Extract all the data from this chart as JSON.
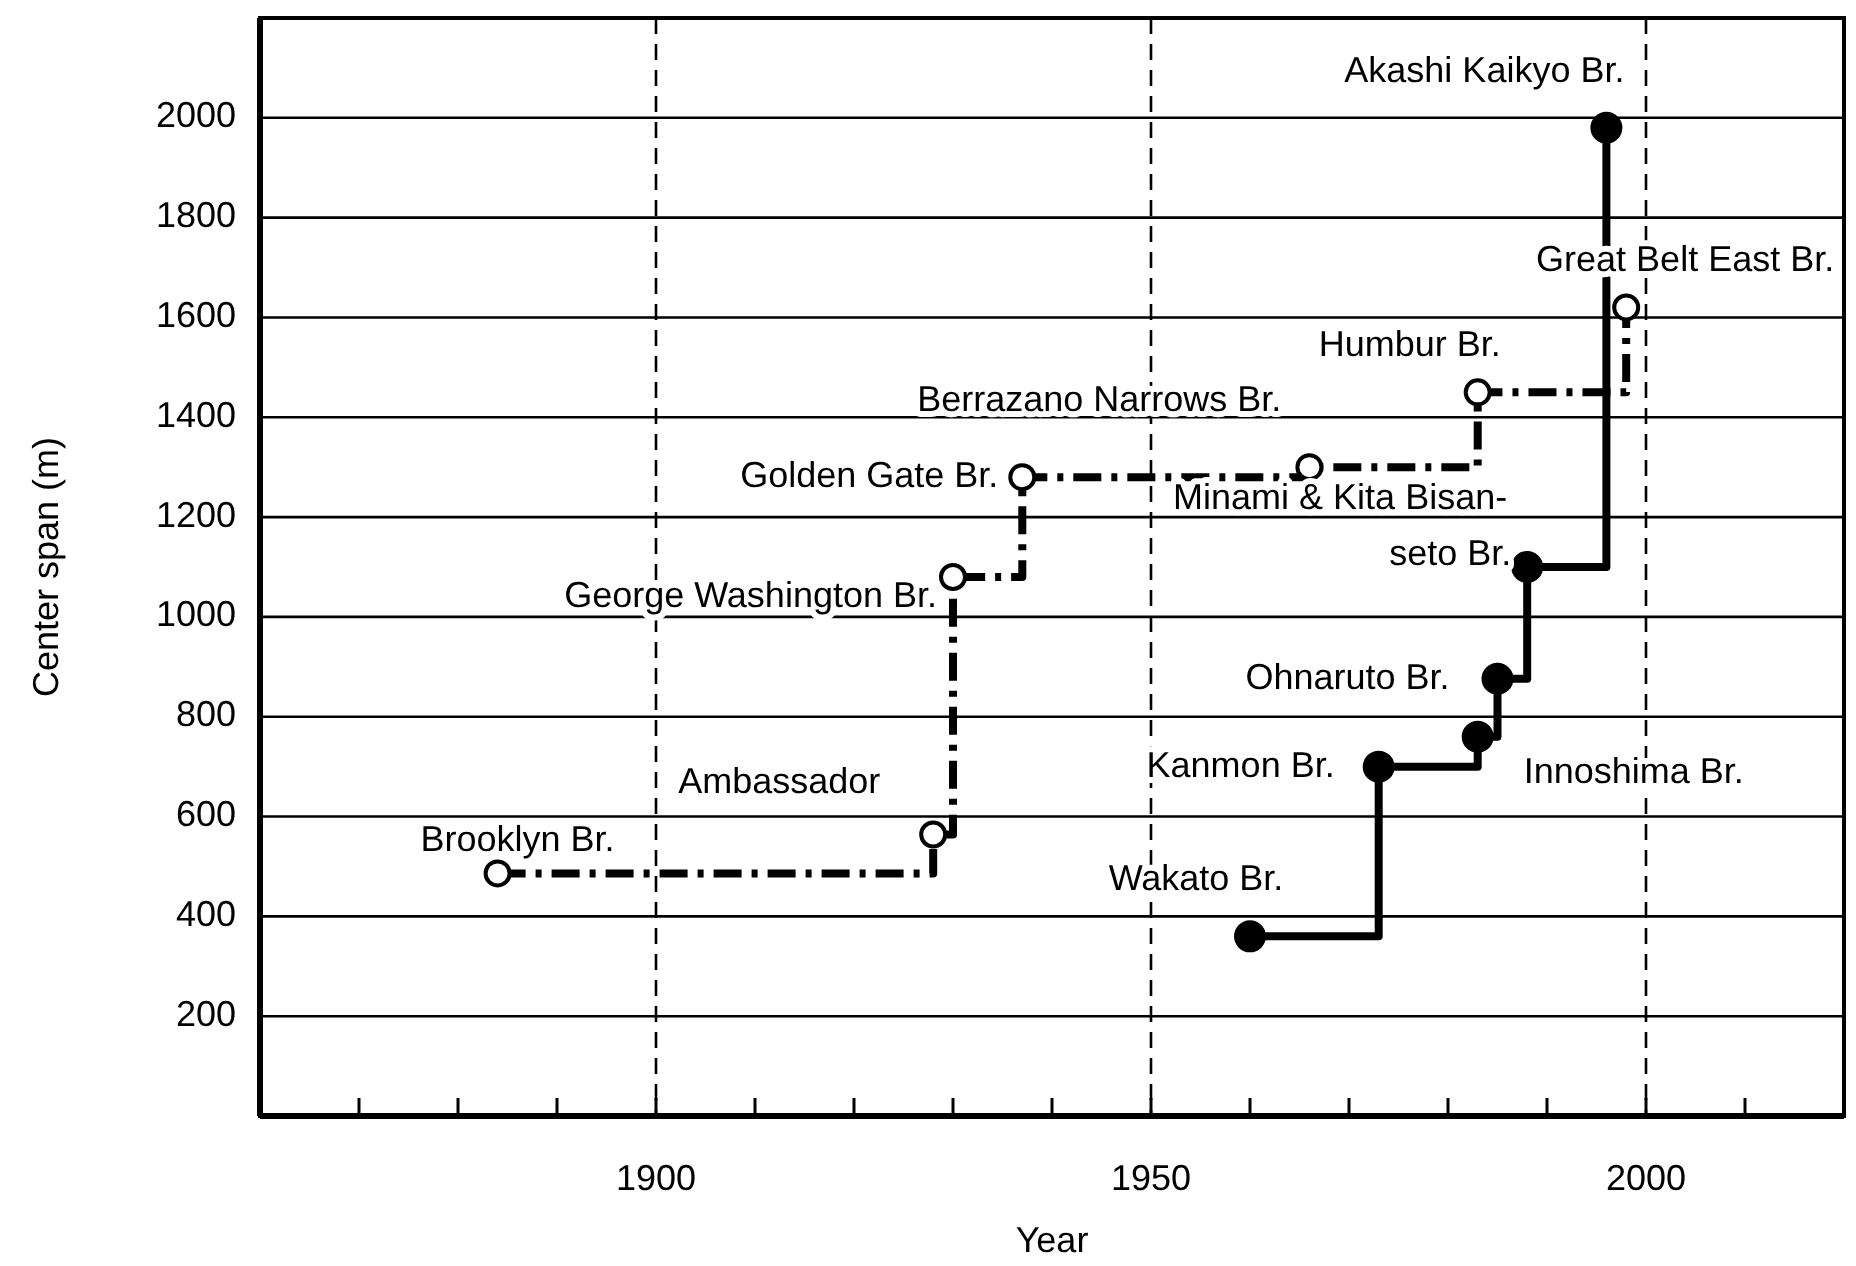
{
  "chart_data": {
    "type": "step",
    "xlabel": "Year",
    "ylabel": "Center span (m)",
    "xlim": [
      1860,
      2020
    ],
    "ylim": [
      0,
      2200
    ],
    "xticks": [
      {
        "value": 1870,
        "label": null
      },
      {
        "value": 1880,
        "label": null
      },
      {
        "value": 1890,
        "label": null
      },
      1900,
      {
        "value": 1910,
        "label": null
      },
      {
        "value": 1920,
        "label": null
      },
      {
        "value": 1930,
        "label": null
      },
      {
        "value": 1940,
        "label": null
      },
      1950,
      {
        "value": 1960,
        "label": null
      },
      {
        "value": 1970,
        "label": null
      },
      {
        "value": 1980,
        "label": null
      },
      {
        "value": 1990,
        "label": null
      },
      2000,
      {
        "value": 2010,
        "label": null
      }
    ],
    "yticks": [
      200,
      400,
      600,
      800,
      1000,
      1200,
      1400,
      1600,
      1800,
      2000
    ],
    "grid": true,
    "marker": "circle",
    "series": [
      {
        "color": "#000000",
        "line_style": "dashed",
        "x": [
          1884,
          1928,
          1930,
          1937,
          1966,
          1983,
          1998
        ],
        "values": [
          486,
          564,
          1080,
          1280,
          1300,
          1450,
          1620
        ]
      },
      {
        "color": "#000000",
        "line_style": "solid",
        "x": [
          1960,
          1973,
          1983,
          1985,
          1988,
          1996
        ],
        "values": [
          360,
          700,
          760,
          876,
          1100,
          1980
        ]
      }
    ],
    "annotations": [
      {
        "text": "Brooklyn Br.",
        "x": 1884,
        "y": 486
      },
      {
        "text": "Ambassador",
        "x": 1928,
        "y": 564
      },
      {
        "text": "George Washington Br.",
        "x": 1930,
        "y": 1080
      },
      {
        "text": "Golden Gate Br.",
        "x": 1937,
        "y": 1280
      },
      {
        "text": "Berrazano Narrows Br.",
        "x": 1966,
        "y": 1300
      },
      {
        "text": "Humbur Br.",
        "x": 1983,
        "y": 1450
      },
      {
        "text": "Great Belt East Br.",
        "x": 1998,
        "y": 1620
      },
      {
        "text": "Wakato Br.",
        "x": 1960,
        "y": 360
      },
      {
        "text": "Kanmon Br.",
        "x": 1973,
        "y": 700
      },
      {
        "text": "Innoshima Br.",
        "x": 1983,
        "y": 760
      },
      {
        "text": "Ohnaruto Br.",
        "x": 1985,
        "y": 876
      },
      {
        "text": "Minami & Kita Bisan-\nseto Br.",
        "x": 1988,
        "y": 1100
      },
      {
        "text": "Akashi Kaikyo Br.",
        "x": 1996,
        "y": 1980
      }
    ]
  }
}
